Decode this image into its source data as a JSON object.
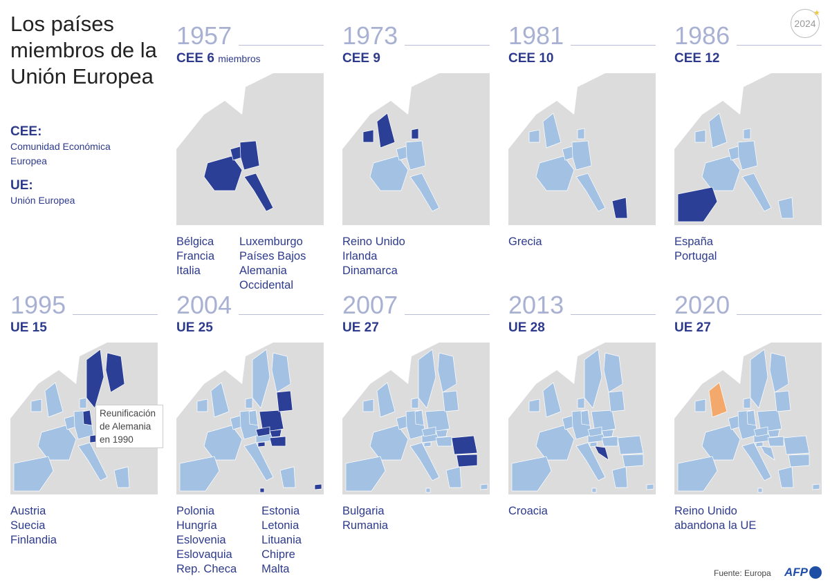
{
  "title": "Los países miembros de la Unión Europea",
  "legend": [
    {
      "key": "CEE:",
      "value": "Comunidad Económica Europea"
    },
    {
      "key": "UE:",
      "value": "Unión Europea"
    }
  ],
  "badge": "2024",
  "colors": {
    "new_member": "#2b3f96",
    "member": "#a3c1e3",
    "non_member": "#dcdcdc",
    "leaving": "#f2a96b",
    "text": "#2d3a8c"
  },
  "panels": [
    {
      "year": "1957",
      "label": "CEE 6",
      "label_suffix": "miembros",
      "countries_a": [
        "Bélgica",
        "Francia",
        "Italia"
      ],
      "countries_b": [
        "Luxemburgo",
        "Países Bajos",
        "Alemania",
        "Occidental"
      ]
    },
    {
      "year": "1973",
      "label": "CEE 9",
      "countries_a": [
        "Reino Unido",
        "Irlanda",
        "Dinamarca"
      ],
      "countries_b": []
    },
    {
      "year": "1981",
      "label": "CEE 10",
      "countries_a": [
        "Grecia"
      ],
      "countries_b": []
    },
    {
      "year": "1986",
      "label": "CEE 12",
      "countries_a": [
        "España",
        "Portugal"
      ],
      "countries_b": []
    },
    {
      "year": "1995",
      "label": "UE 15",
      "countries_a": [
        "Austria",
        "Suecia",
        "Finlandia"
      ],
      "countries_b": [],
      "note": "Reunificación de Alemania en 1990"
    },
    {
      "year": "2004",
      "label": "UE 25",
      "countries_a": [
        "Polonia",
        "Hungría",
        "Eslovenia",
        "Eslovaquia",
        "Rep. Checa"
      ],
      "countries_b": [
        "Estonia",
        "Letonia",
        "Lituania",
        "Chipre",
        "Malta"
      ]
    },
    {
      "year": "2007",
      "label": "UE 27",
      "countries_a": [
        "Bulgaria",
        "Rumania"
      ],
      "countries_b": []
    },
    {
      "year": "2013",
      "label": "UE 28",
      "countries_a": [
        "Croacia"
      ],
      "countries_b": []
    },
    {
      "year": "2020",
      "label": "UE 27",
      "countries_a": [
        "Reino Unido",
        "abandona la UE"
      ],
      "countries_b": []
    }
  ],
  "source": "Fuente: Europa",
  "logo": "AFP"
}
